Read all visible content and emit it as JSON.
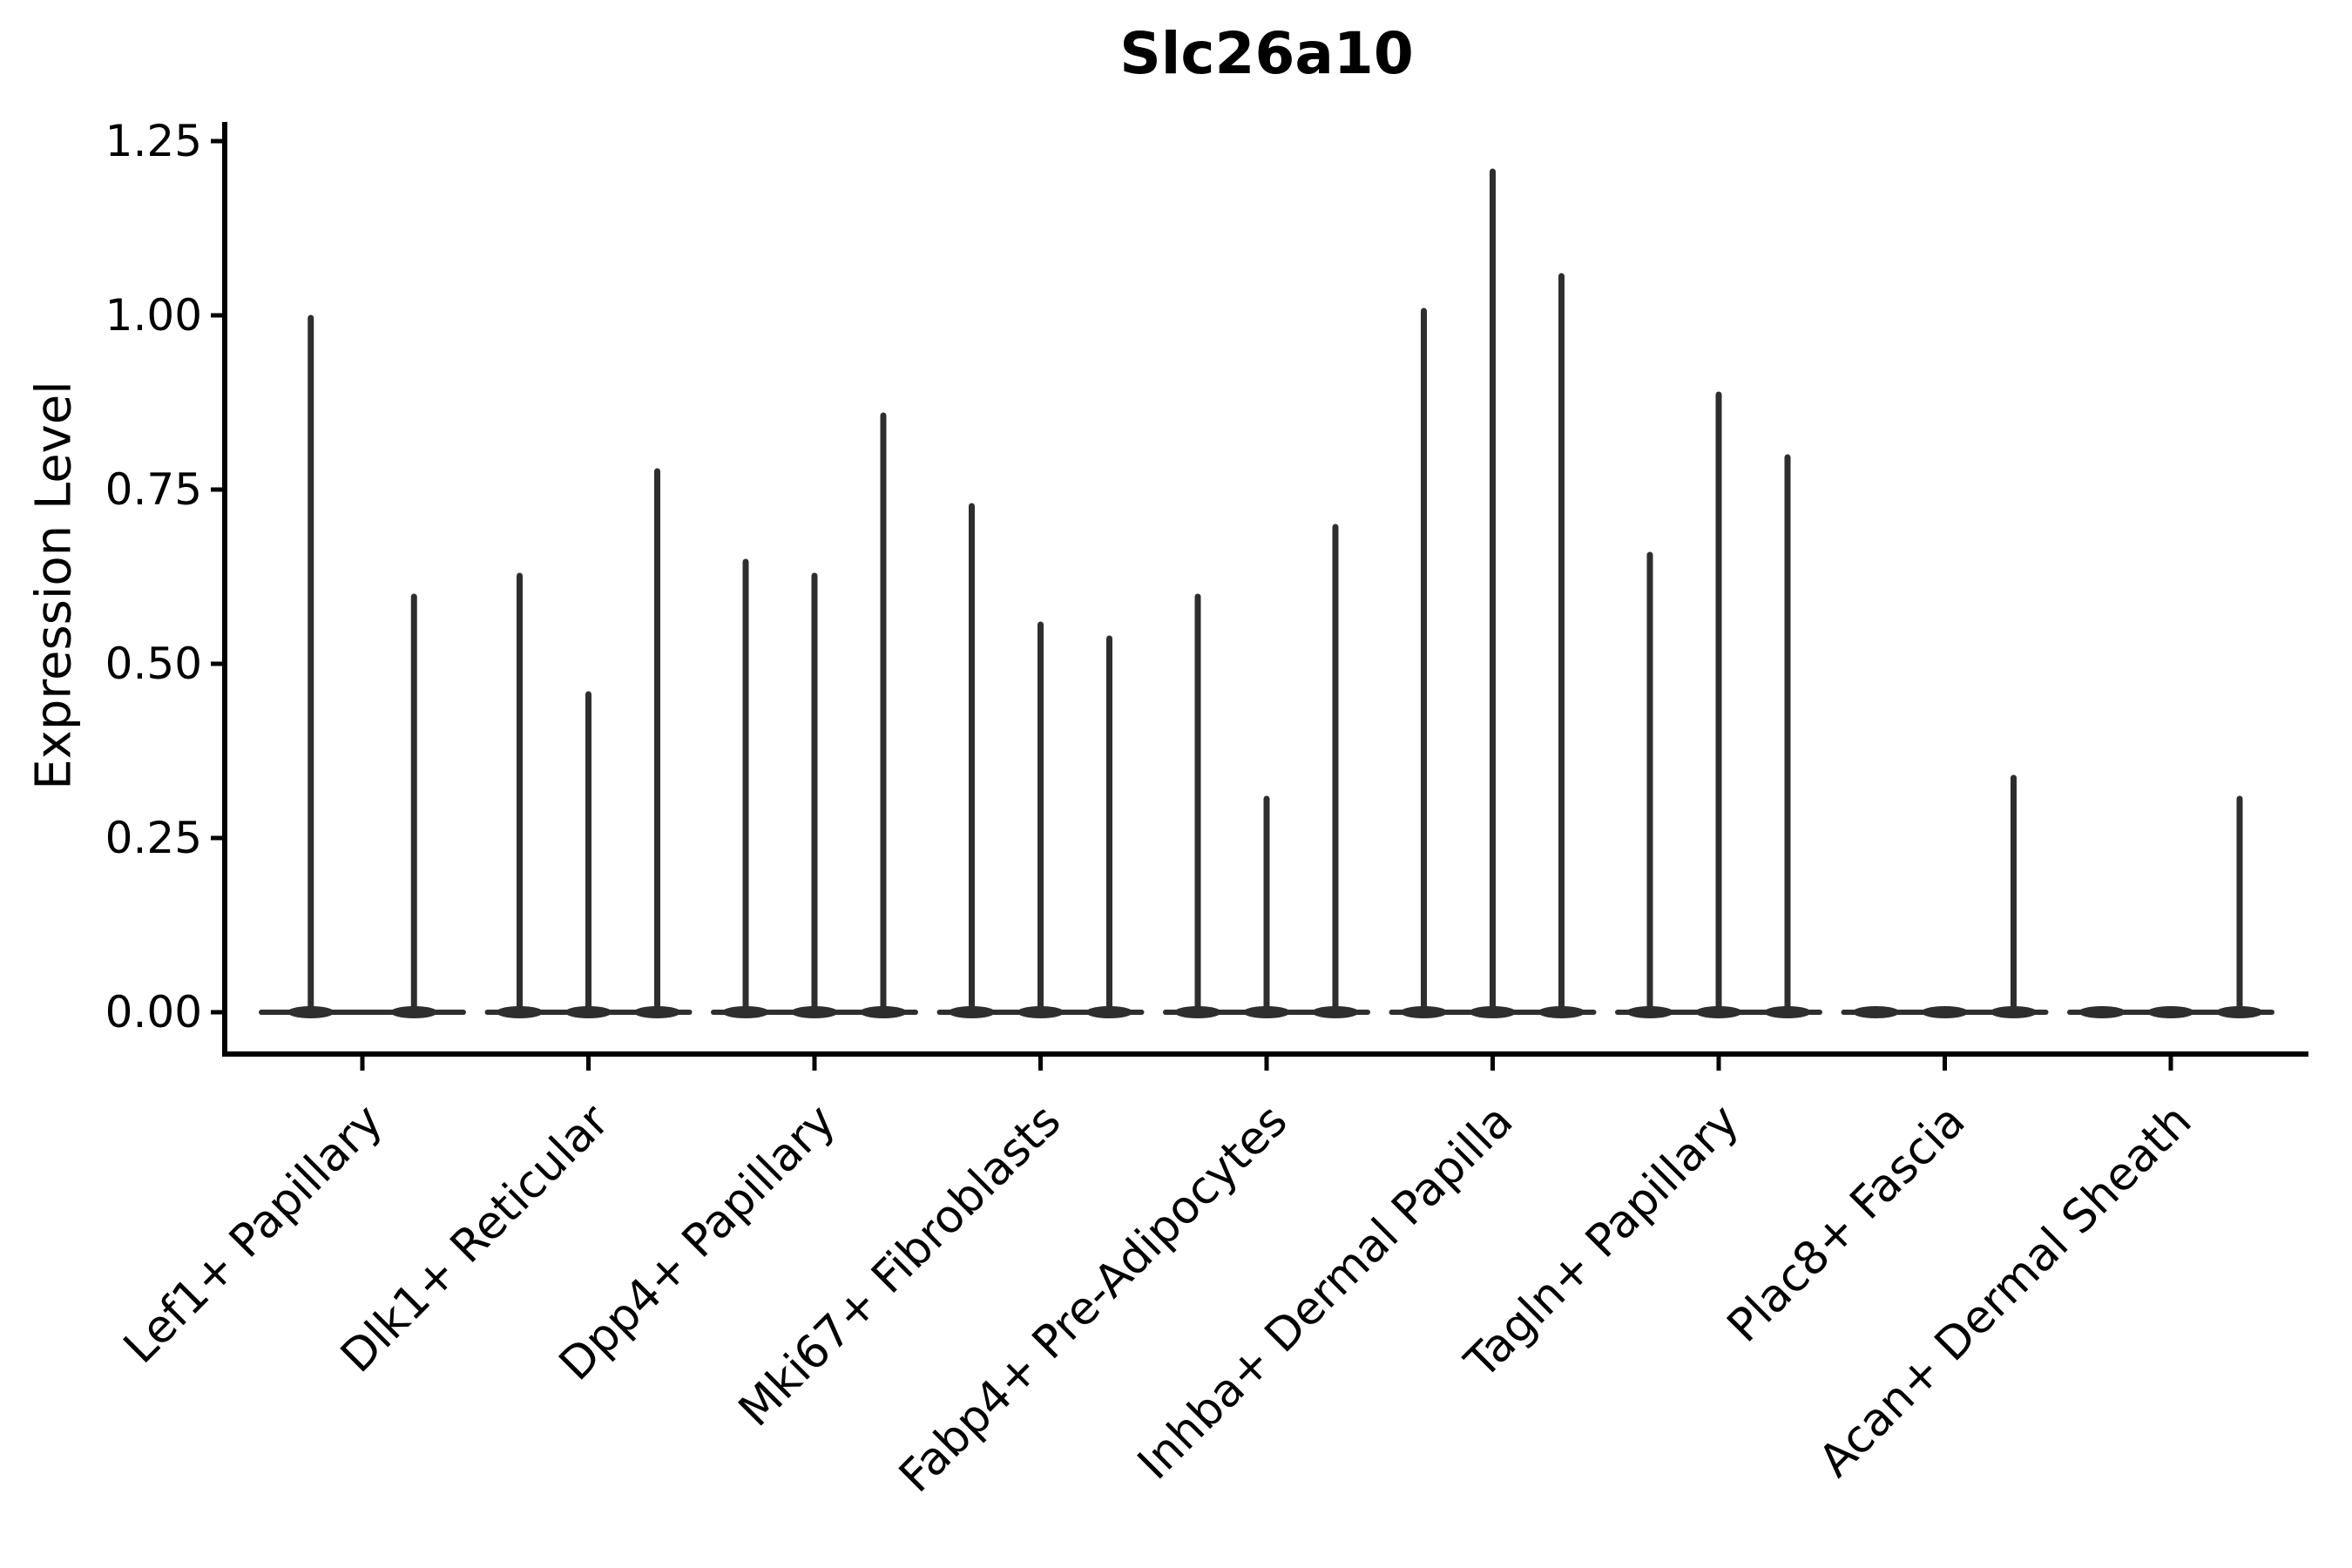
{
  "title": "Slc26a10",
  "y_axis": {
    "label": "Expression Level",
    "tick_labels": [
      "0.00",
      "0.25",
      "0.50",
      "0.75",
      "1.00",
      "1.25"
    ]
  },
  "x_axis": {
    "tick_labels": [
      "Lef1+ Papillary",
      "Dlk1+ Reticular",
      "Dpp4+ Papillary",
      "Mki67+ Fibroblasts",
      "Fabp4+ Pre-Adipocytes",
      "Inhba+ Dermal Papilla",
      "Tagln+ Papillary",
      "Plac8+ Fascia",
      "Acan+ Dermal Sheath"
    ]
  },
  "chart_data": {
    "type": "violin",
    "title": "Slc26a10",
    "xlabel": "",
    "ylabel": "Expression Level",
    "ylim": [
      0,
      1.25
    ],
    "yticks": [
      0,
      0.25,
      0.5,
      0.75,
      1.0,
      1.25
    ],
    "grid": false,
    "legend": "none",
    "style": "needle-thin violins collapsed to vertical lines with flat baseline at 0; groups of dodged violins per category",
    "categories": [
      "Lef1+ Papillary",
      "Dlk1+ Reticular",
      "Dpp4+ Papillary",
      "Mki67+ Fibroblasts",
      "Fabp4+ Pre-Adipocytes",
      "Inhba+ Dermal Papilla",
      "Tagln+ Papillary",
      "Plac8+ Fascia",
      "Acan+ Dermal Sheath"
    ],
    "series": [
      {
        "category": "Lef1+ Papillary",
        "violin_max_expression": [
          1.0,
          0.6
        ]
      },
      {
        "category": "Dlk1+ Reticular",
        "violin_max_expression": [
          0.63,
          0.46,
          0.78
        ]
      },
      {
        "category": "Dpp4+ Papillary",
        "violin_max_expression": [
          0.65,
          0.63,
          0.86
        ]
      },
      {
        "category": "Mki67+ Fibroblasts",
        "violin_max_expression": [
          0.73,
          0.56,
          0.54
        ]
      },
      {
        "category": "Fabp4+ Pre-Adipocytes",
        "violin_max_expression": [
          0.6,
          0.31,
          0.7
        ]
      },
      {
        "category": "Inhba+ Dermal Papilla",
        "violin_max_expression": [
          1.01,
          1.21,
          1.06
        ]
      },
      {
        "category": "Tagln+ Papillary",
        "violin_max_expression": [
          0.66,
          0.89,
          0.8
        ]
      },
      {
        "category": "Plac8+ Fascia",
        "violin_max_expression": [
          0,
          0,
          0.34
        ]
      },
      {
        "category": "Acan+ Dermal Sheath",
        "violin_max_expression": [
          0,
          0,
          0.31
        ]
      }
    ],
    "colors": {
      "violin_stroke": "#2e2e2e",
      "axis": "#000000",
      "text": "#000000"
    }
  }
}
